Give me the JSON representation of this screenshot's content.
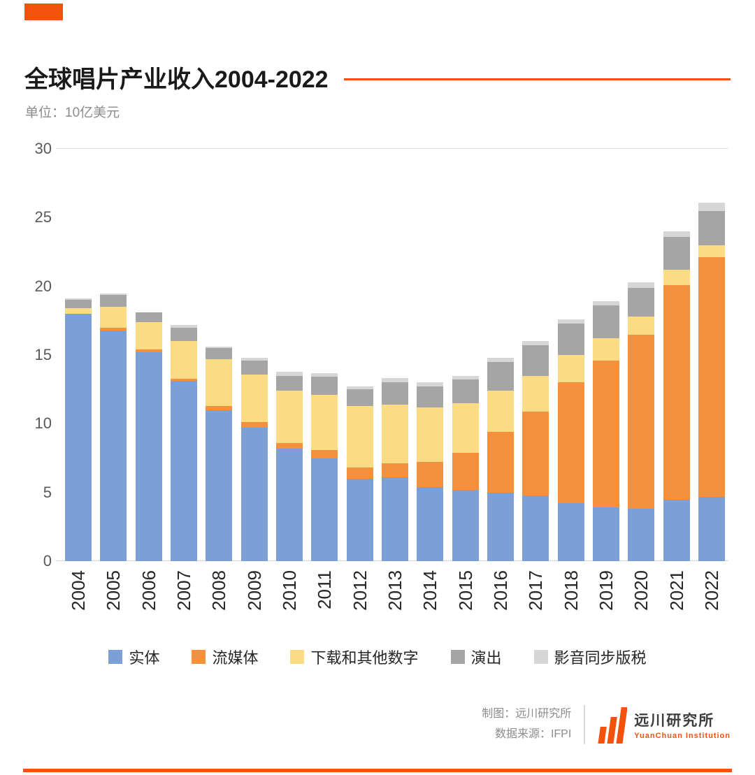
{
  "accent_color": "#F3520D",
  "page": {
    "title": "全球唱片产业收入2004-2022",
    "unit_label": "单位：10亿美元"
  },
  "chart_data": {
    "type": "bar",
    "stacked": true,
    "title": "全球唱片产业收入2004-2022",
    "unit": "10亿美元",
    "categories": [
      "2004",
      "2005",
      "2006",
      "2007",
      "2008",
      "2009",
      "2010",
      "2011",
      "2012",
      "2013",
      "2014",
      "2015",
      "2016",
      "2017",
      "2018",
      "2019",
      "2020",
      "2021",
      "2022"
    ],
    "series": [
      {
        "name": "实体",
        "color": "#7C9FD6",
        "values": [
          18.0,
          16.8,
          15.2,
          13.1,
          11.0,
          9.7,
          8.2,
          7.5,
          6.0,
          6.1,
          5.4,
          5.2,
          5.0,
          4.8,
          4.2,
          3.9,
          3.8,
          4.5,
          4.7
        ]
      },
      {
        "name": "流媒体",
        "color": "#F5913C",
        "values": [
          0.0,
          0.2,
          0.2,
          0.2,
          0.3,
          0.4,
          0.4,
          0.6,
          0.8,
          1.0,
          1.8,
          2.7,
          4.4,
          6.1,
          8.8,
          10.7,
          12.7,
          15.6,
          17.4
        ]
      },
      {
        "name": "下载和其他数字",
        "color": "#FBDC84",
        "values": [
          0.4,
          1.5,
          2.0,
          2.7,
          3.4,
          3.5,
          3.8,
          4.0,
          4.5,
          4.3,
          4.0,
          3.6,
          3.0,
          2.6,
          2.0,
          1.6,
          1.3,
          1.1,
          0.9
        ]
      },
      {
        "name": "演出",
        "color": "#A5A5A5",
        "values": [
          0.6,
          0.9,
          0.7,
          1.0,
          0.8,
          1.0,
          1.1,
          1.3,
          1.2,
          1.6,
          1.5,
          1.7,
          2.1,
          2.2,
          2.3,
          2.4,
          2.1,
          2.4,
          2.5
        ]
      },
      {
        "name": "影音同步版税",
        "color": "#D6D6D6",
        "values": [
          0.1,
          0.1,
          0.0,
          0.2,
          0.1,
          0.2,
          0.3,
          0.3,
          0.2,
          0.3,
          0.3,
          0.3,
          0.3,
          0.3,
          0.3,
          0.3,
          0.4,
          0.4,
          0.6
        ]
      }
    ],
    "ylim": [
      0,
      30
    ],
    "yticks": [
      0,
      5,
      10,
      15,
      20,
      25,
      30
    ],
    "xlabel": "",
    "ylabel": "10亿美元",
    "grid": "line at 30 and baseline at 0 only",
    "legend_position": "bottom"
  },
  "footer": {
    "credit": "制图：远川研究所",
    "source": "数据来源：IFPI",
    "logo": {
      "name": "远川研究所",
      "subtitle": "YuanChuan Institution"
    }
  }
}
